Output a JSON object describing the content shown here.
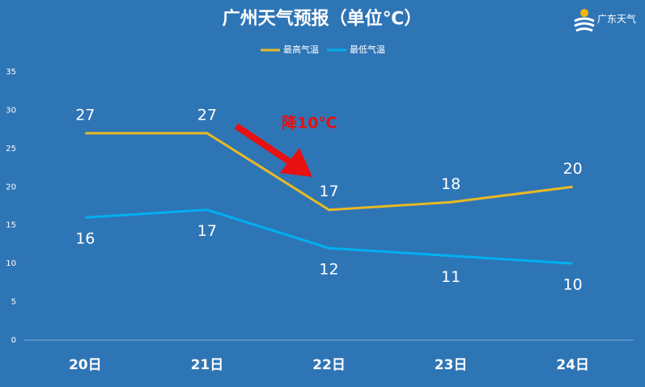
{
  "chart_data": {
    "type": "line",
    "title": "广州天气预报（单位℃）",
    "categories": [
      "20日",
      "21日",
      "22日",
      "23日",
      "24日"
    ],
    "series": [
      {
        "name": "最高气温",
        "color": "#e8b923",
        "values": [
          27,
          27,
          17,
          18,
          20
        ]
      },
      {
        "name": "最低气温",
        "color": "#00b0f0",
        "values": [
          16,
          17,
          12,
          11,
          10
        ]
      }
    ],
    "ylim": [
      0,
      35
    ],
    "yticks": [
      0,
      5,
      10,
      15,
      20,
      25,
      30,
      35
    ],
    "grid": false,
    "legend": "top",
    "annotation": "降10℃"
  },
  "logo": {
    "text": "广东天气"
  }
}
